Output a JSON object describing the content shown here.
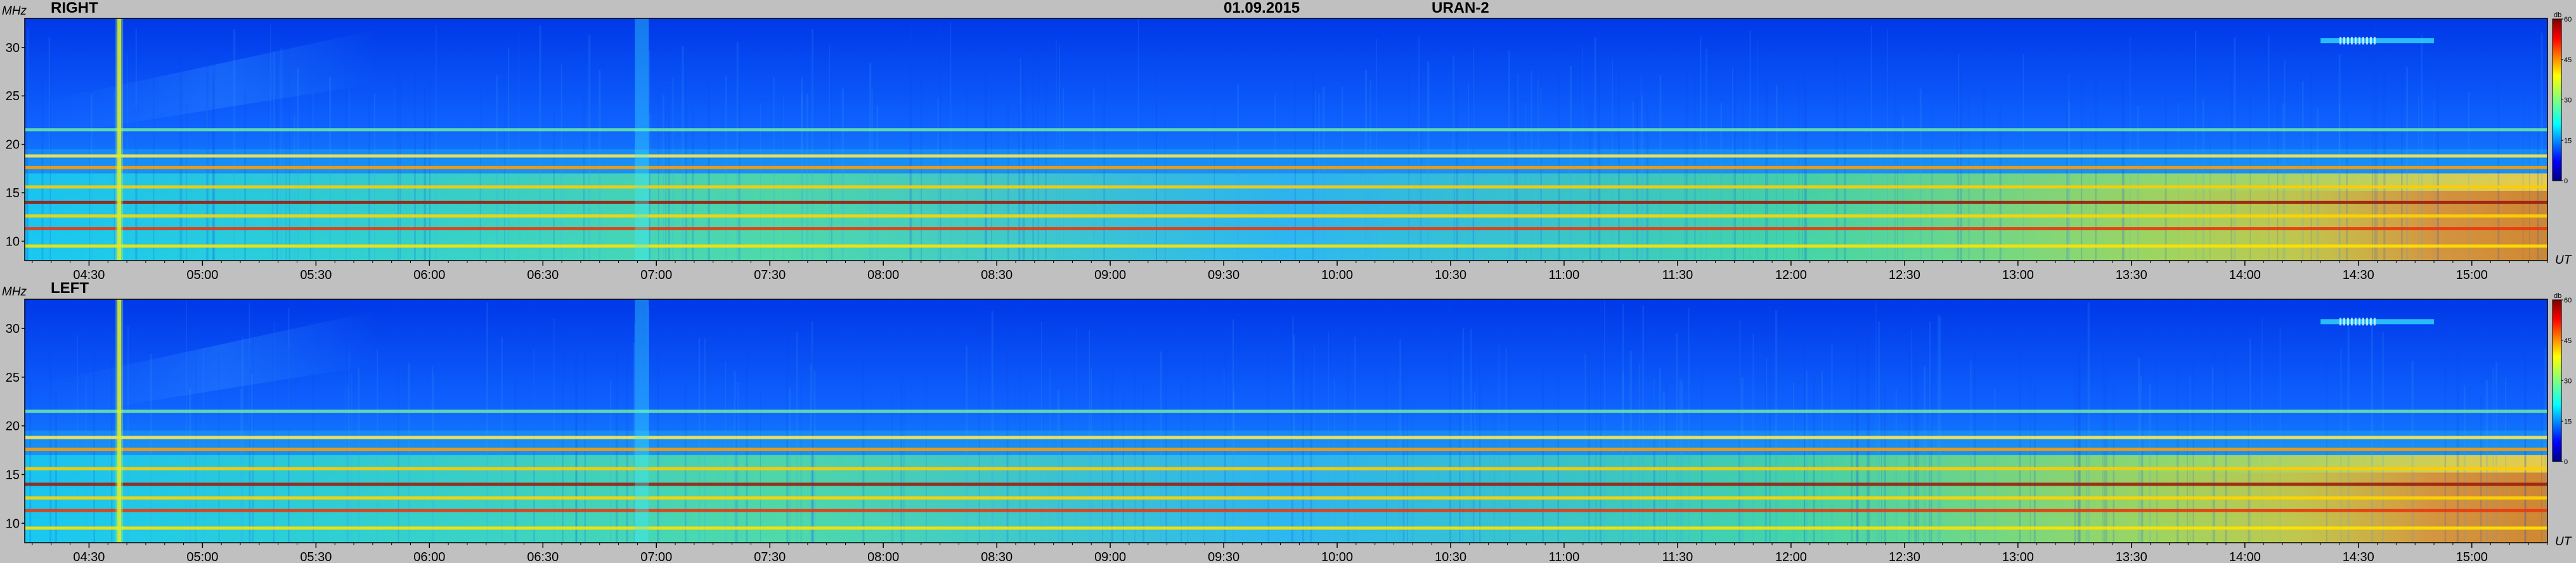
{
  "header": {
    "date": "01.09.2015",
    "instrument": "URAN-2"
  },
  "chart_data": [
    {
      "type": "heatmap",
      "title": "RIGHT",
      "ylabel": "MHz",
      "xlabel": "UT",
      "x_ticks": [
        "04:30",
        "05:00",
        "05:30",
        "06:00",
        "06:30",
        "07:00",
        "07:30",
        "08:00",
        "08:30",
        "09:00",
        "09:30",
        "10:00",
        "10:30",
        "11:00",
        "11:30",
        "12:00",
        "12:30",
        "13:00",
        "13:30",
        "14:00",
        "14:30",
        "15:00"
      ],
      "y_ticks": [
        10,
        15,
        20,
        25,
        30
      ],
      "ylim": [
        8,
        33
      ],
      "xlim": [
        "04:13",
        "15:20"
      ],
      "colorbar": {
        "label": "db",
        "ticks": [
          0,
          15,
          30,
          45,
          60
        ],
        "range": [
          0,
          60
        ]
      },
      "features": {
        "rfi_lines_mhz": [
          9.5,
          11.3,
          12.6,
          14.0,
          15.6,
          17.6,
          18.8,
          21.5
        ],
        "broadband_bursts_ut": [
          "04:38",
          "06:56"
        ],
        "fine_structure_ut": [
          "14:25",
          "14:35"
        ]
      }
    },
    {
      "type": "heatmap",
      "title": "LEFT",
      "ylabel": "MHz",
      "xlabel": "UT",
      "x_ticks": [
        "04:30",
        "05:00",
        "05:30",
        "06:00",
        "06:30",
        "07:00",
        "07:30",
        "08:00",
        "08:30",
        "09:00",
        "09:30",
        "10:00",
        "10:30",
        "11:00",
        "11:30",
        "12:00",
        "12:30",
        "13:00",
        "13:30",
        "14:00",
        "14:30",
        "15:00"
      ],
      "y_ticks": [
        10,
        15,
        20,
        25,
        30
      ],
      "ylim": [
        8,
        33
      ],
      "xlim": [
        "04:13",
        "15:20"
      ],
      "colorbar": {
        "label": "db",
        "ticks": [
          0,
          15,
          30,
          45,
          60
        ],
        "range": [
          0,
          60
        ]
      },
      "features": {
        "rfi_lines_mhz": [
          9.5,
          11.3,
          12.6,
          14.0,
          15.6,
          17.6,
          18.8,
          21.5
        ],
        "broadband_bursts_ut": [
          "04:38",
          "06:56"
        ],
        "fine_structure_ut": [
          "14:25",
          "14:35"
        ]
      }
    }
  ]
}
